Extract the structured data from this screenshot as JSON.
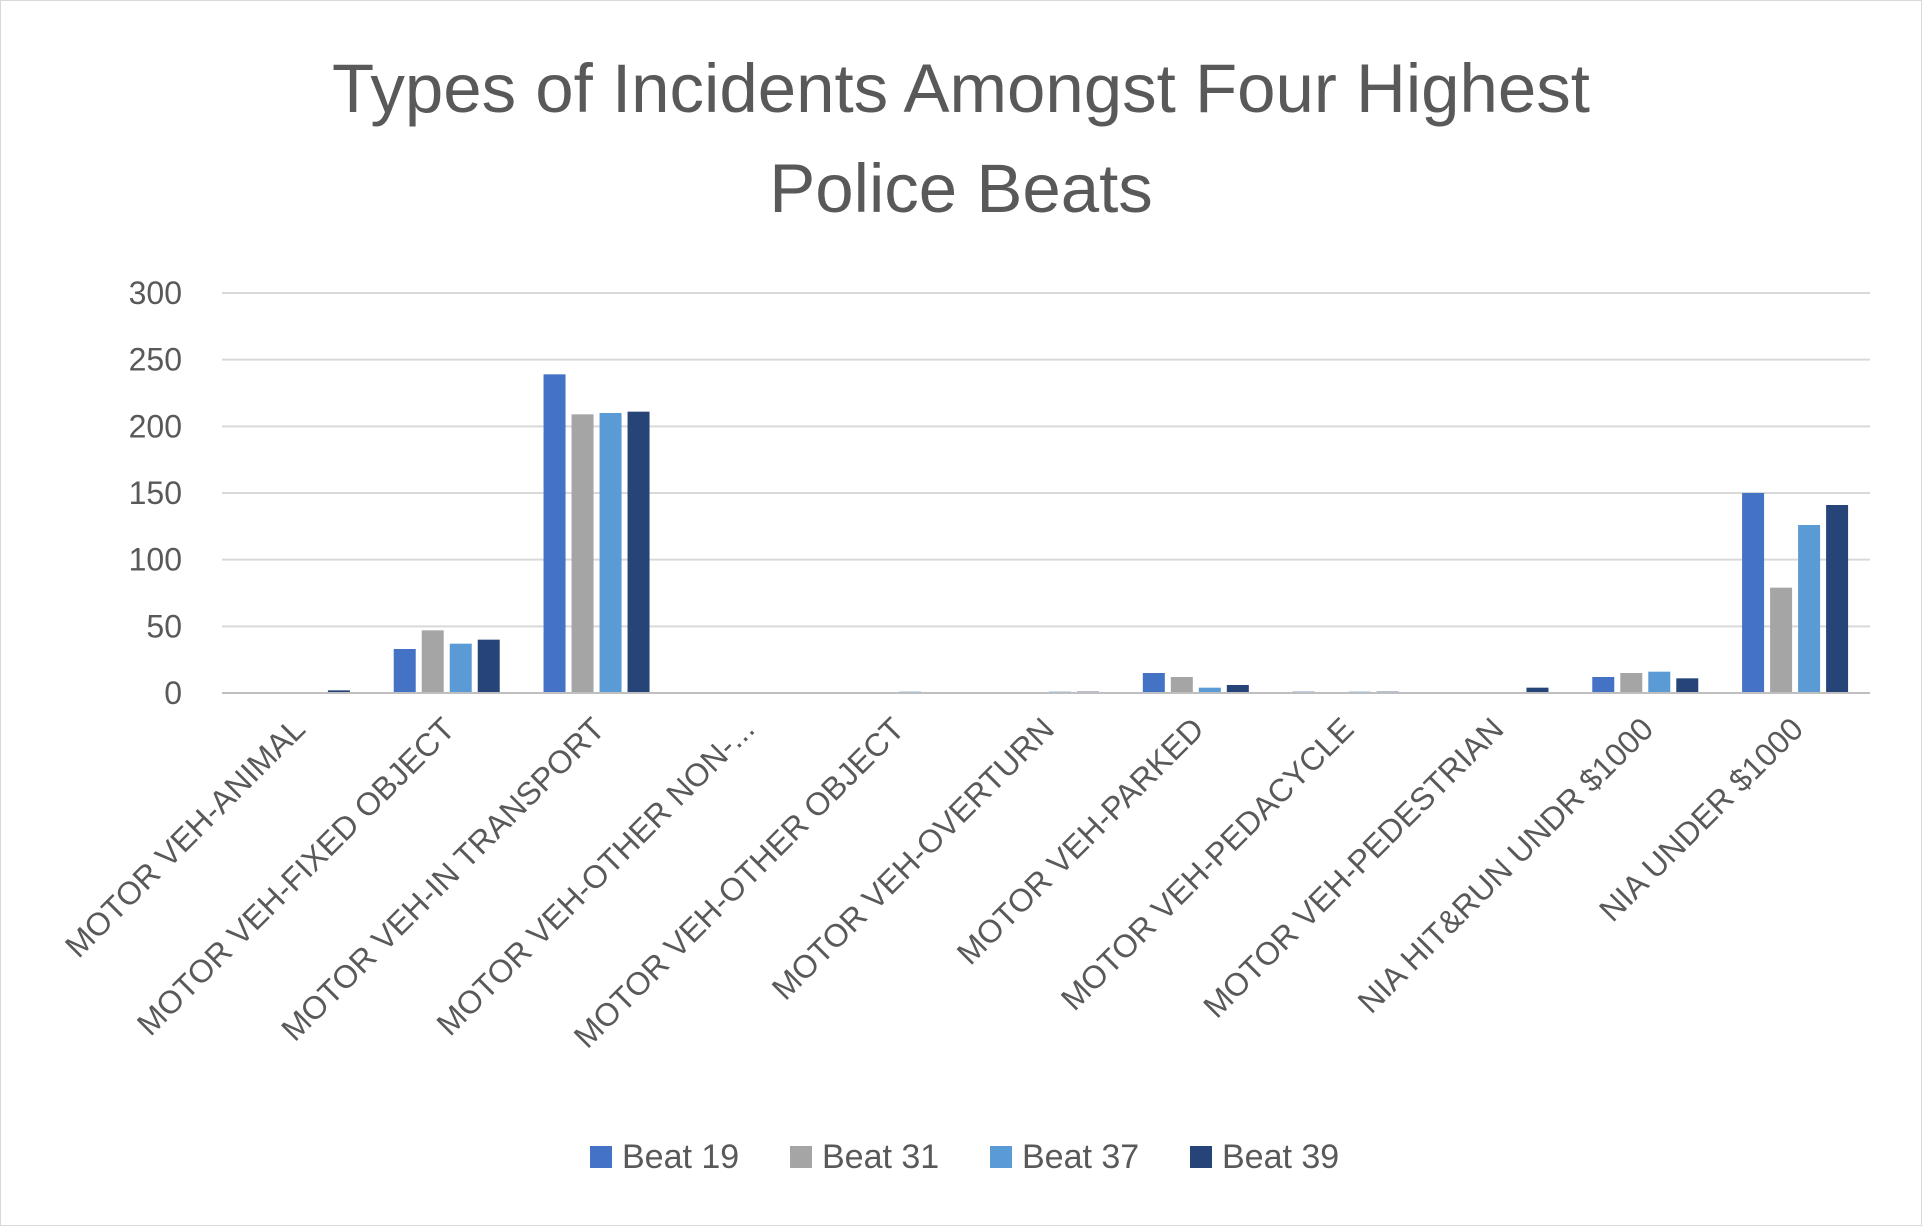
{
  "chart_data": {
    "type": "bar",
    "title_lines": [
      "Types of Incidents Amongst Four Highest",
      "Police Beats"
    ],
    "xlabel": "",
    "ylabel": "",
    "ylim": [
      0,
      300
    ],
    "yticks": [
      "0",
      "50",
      "100",
      "150",
      "200",
      "250",
      "300"
    ],
    "grid": true,
    "legend_position": "bottom",
    "categories": [
      "MOTOR VEH-ANIMAL",
      "MOTOR VEH-FIXED OBJECT",
      "MOTOR VEH-IN TRANSPORT",
      "MOTOR VEH-OTHER NON-...",
      "MOTOR VEH-OTHER OBJECT",
      "MOTOR VEH-OVERTURN",
      "MOTOR VEH-PARKED",
      "MOTOR VEH-PEDACYCLE",
      "MOTOR VEH-PEDESTRIAN",
      "NIA HIT&RUN UNDR $1000",
      "NIA UNDER $1000"
    ],
    "series": [
      {
        "name": "Beat 19",
        "color": "#4472c4",
        "values": [
          0,
          33,
          239,
          0,
          0,
          0,
          15,
          1,
          0,
          12,
          150
        ]
      },
      {
        "name": "Beat 31",
        "color": "#a5a5a5",
        "values": [
          0,
          47,
          209,
          0,
          0,
          0,
          12,
          0,
          0,
          15,
          79
        ]
      },
      {
        "name": "Beat 37",
        "color": "#5b9bd5",
        "values": [
          0,
          37,
          210,
          0,
          1,
          1,
          4,
          1,
          0,
          16,
          126
        ]
      },
      {
        "name": "Beat 39",
        "color": "#264478",
        "values": [
          2,
          40,
          211,
          0,
          0,
          1,
          6,
          1,
          4,
          11,
          141
        ]
      }
    ]
  }
}
